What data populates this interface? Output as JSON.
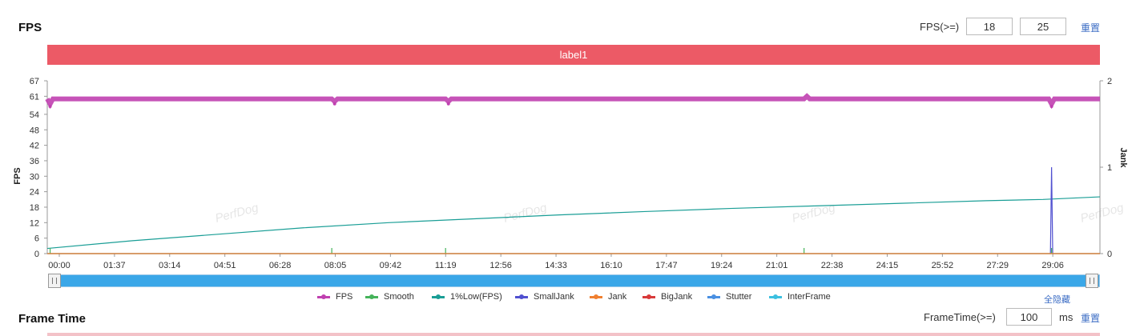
{
  "fps_panel": {
    "title": "FPS",
    "threshold_label": "FPS(>=)",
    "threshold_1": "18",
    "threshold_2": "25",
    "reset_label": "重置",
    "label_bar": "label1"
  },
  "legend": {
    "items": [
      {
        "name": "FPS",
        "color": "#c040b0"
      },
      {
        "name": "Smooth",
        "color": "#45b35a"
      },
      {
        "name": "1%Low(FPS)",
        "color": "#1a9e96"
      },
      {
        "name": "SmallJank",
        "color": "#5050d0"
      },
      {
        "name": "Jank",
        "color": "#f08030"
      },
      {
        "name": "BigJank",
        "color": "#d83a3a"
      },
      {
        "name": "Stutter",
        "color": "#4a90e2"
      },
      {
        "name": "InterFrame",
        "color": "#3cc0e0"
      }
    ],
    "hide_all_label": "全隐藏"
  },
  "watermark": "PerfDog",
  "frame_time_panel": {
    "title": "Frame Time",
    "threshold_label": "FrameTime(>=)",
    "threshold_value": "100",
    "unit": "ms",
    "reset_label": "重置"
  },
  "chart_data": {
    "type": "line",
    "xlabel": "",
    "ylabel": "FPS",
    "y2label": "Jank",
    "x_ticks": [
      "00:00",
      "01:37",
      "03:14",
      "04:51",
      "06:28",
      "08:05",
      "09:42",
      "11:19",
      "12:56",
      "14:33",
      "16:10",
      "17:47",
      "19:24",
      "21:01",
      "22:38",
      "24:15",
      "25:52",
      "27:29",
      "29:06"
    ],
    "y_ticks": [
      0,
      6,
      12,
      18,
      24,
      30,
      36,
      42,
      48,
      54,
      61,
      67
    ],
    "y2_ticks": [
      0,
      1,
      2
    ],
    "ylim": [
      0,
      67
    ],
    "y2lim": [
      0,
      2
    ],
    "x_range_seconds": [
      0,
      1850
    ],
    "grid": false,
    "legend_position": "bottom",
    "series": [
      {
        "name": "FPS",
        "axis": "left",
        "points": [
          [
            0,
            60
          ],
          [
            5,
            58
          ],
          [
            10,
            60
          ],
          [
            500,
            60
          ],
          [
            505,
            59
          ],
          [
            510,
            60
          ],
          [
            700,
            60
          ],
          [
            705,
            59
          ],
          [
            710,
            60
          ],
          [
            1330,
            60
          ],
          [
            1335,
            61
          ],
          [
            1340,
            60
          ],
          [
            1760,
            60
          ],
          [
            1765,
            58
          ],
          [
            1770,
            60
          ],
          [
            1850,
            60
          ]
        ]
      },
      {
        "name": "1%Low(FPS)",
        "axis": "left",
        "points": [
          [
            0,
            2
          ],
          [
            150,
            5
          ],
          [
            300,
            7.5
          ],
          [
            450,
            10
          ],
          [
            600,
            12
          ],
          [
            750,
            13.5
          ],
          [
            900,
            15
          ],
          [
            1050,
            16.3
          ],
          [
            1200,
            17.5
          ],
          [
            1350,
            18.5
          ],
          [
            1500,
            19.5
          ],
          [
            1650,
            20.5
          ],
          [
            1750,
            21
          ],
          [
            1850,
            22
          ]
        ]
      },
      {
        "name": "SmallJank",
        "axis": "right",
        "points": [
          [
            0,
            0
          ],
          [
            1763,
            0
          ],
          [
            1765,
            1
          ],
          [
            1767,
            0
          ],
          [
            1850,
            0
          ]
        ]
      },
      {
        "name": "Smooth",
        "axis": "left",
        "points": [
          [
            0,
            0
          ],
          [
            1850,
            0
          ]
        ],
        "markers_x": [
          5,
          500,
          700,
          1330,
          1765
        ]
      },
      {
        "name": "Jank",
        "axis": "right",
        "points": [
          [
            0,
            0
          ],
          [
            1850,
            0
          ]
        ]
      }
    ]
  }
}
